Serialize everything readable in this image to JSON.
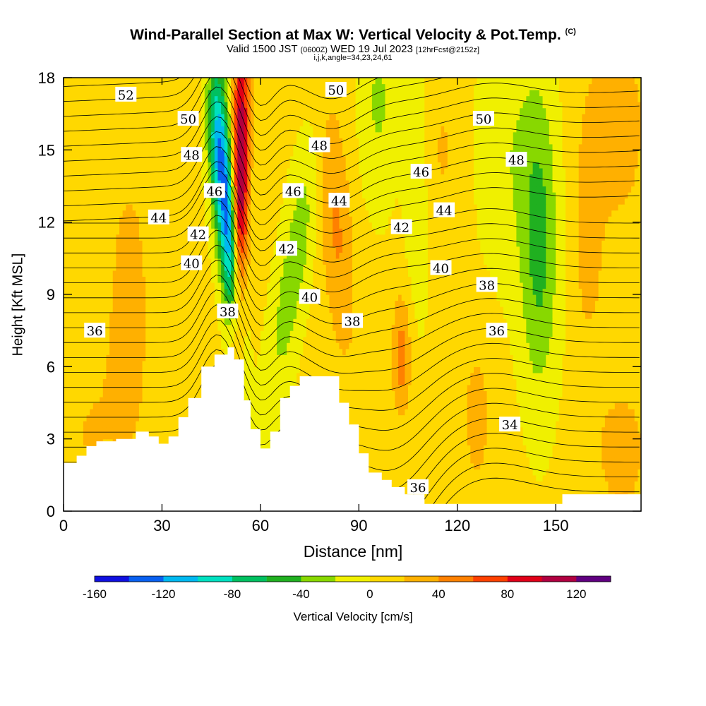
{
  "header": {
    "title": "Wind-Parallel Section at Max W: Vertical Velocity & Pot.Temp.",
    "copyright": "(C)",
    "valid_prefix": "Valid 1500 JST",
    "valid_zulu": "(0600Z)",
    "valid_date": "WED 19 Jul 2023",
    "forecast": "[12hrFcst@2152z]",
    "indices": "i,j,k,angle=34,23,24,61"
  },
  "chart_data": {
    "type": "heatmap",
    "xlabel": "Distance [nm]",
    "ylabel": "Height [Kft MSL]",
    "xlim": [
      0,
      176
    ],
    "ylim": [
      0,
      18
    ],
    "xticks": [
      "0",
      "30",
      "60",
      "90",
      "120",
      "150"
    ],
    "xtick_values": [
      0,
      30,
      60,
      90,
      120,
      150
    ],
    "yticks": [
      "0",
      "3",
      "6",
      "9",
      "12",
      "15",
      "18"
    ],
    "ytick_values": [
      0,
      3,
      6,
      9,
      12,
      15,
      18
    ],
    "colorbar": {
      "label": "Vertical Velocity [cm/s]",
      "tick_labels": [
        "-160",
        "-120",
        "-80",
        "-40",
        "0",
        "40",
        "80",
        "120"
      ],
      "tick_values": [
        -160,
        -120,
        -80,
        -40,
        0,
        40,
        80,
        120
      ],
      "bins": [
        -160,
        -140,
        -120,
        -100,
        -80,
        -60,
        -40,
        -20,
        0,
        20,
        40,
        60,
        80,
        100,
        120,
        140
      ],
      "colors": [
        "#1010e0",
        "#0860f0",
        "#00b8f0",
        "#00e0c0",
        "#00c060",
        "#20b020",
        "#88d800",
        "#f0f000",
        "#ffd800",
        "#ffb000",
        "#ff8000",
        "#ff4000",
        "#e00018",
        "#b00040",
        "#600080"
      ]
    },
    "contour_labels": [
      {
        "text": "52",
        "x": 19,
        "y": 17.3
      },
      {
        "text": "50",
        "x": 38,
        "y": 16.3
      },
      {
        "text": "48",
        "x": 39,
        "y": 14.8
      },
      {
        "text": "46",
        "x": 46,
        "y": 13.3
      },
      {
        "text": "44",
        "x": 29,
        "y": 12.2
      },
      {
        "text": "42",
        "x": 41,
        "y": 11.5
      },
      {
        "text": "40",
        "x": 39,
        "y": 10.3
      },
      {
        "text": "38",
        "x": 50,
        "y": 8.3
      },
      {
        "text": "36",
        "x": 9.5,
        "y": 7.5
      },
      {
        "text": "50",
        "x": 83,
        "y": 17.5
      },
      {
        "text": "48",
        "x": 78,
        "y": 15.2
      },
      {
        "text": "46",
        "x": 70,
        "y": 13.3
      },
      {
        "text": "44",
        "x": 84,
        "y": 12.9
      },
      {
        "text": "42",
        "x": 68,
        "y": 10.9
      },
      {
        "text": "40",
        "x": 75,
        "y": 8.9
      },
      {
        "text": "38",
        "x": 88,
        "y": 7.9
      },
      {
        "text": "46",
        "x": 109,
        "y": 14.1
      },
      {
        "text": "44",
        "x": 116,
        "y": 12.5
      },
      {
        "text": "42",
        "x": 103,
        "y": 11.8
      },
      {
        "text": "40",
        "x": 115,
        "y": 10.1
      },
      {
        "text": "38",
        "x": 129,
        "y": 9.4
      },
      {
        "text": "36",
        "x": 132,
        "y": 7.5
      },
      {
        "text": "50",
        "x": 128,
        "y": 16.3
      },
      {
        "text": "48",
        "x": 138,
        "y": 14.6
      },
      {
        "text": "34",
        "x": 136,
        "y": 3.6
      },
      {
        "text": "36",
        "x": 108,
        "y": 1.0
      }
    ],
    "terrain": {
      "x": [
        0,
        4,
        7,
        10,
        16,
        22,
        26,
        29,
        32,
        35,
        38,
        42,
        46,
        50,
        52,
        55,
        57,
        60,
        63,
        66,
        69,
        72,
        75,
        80,
        84,
        87,
        90,
        93,
        97,
        100,
        104,
        110,
        120,
        140,
        150,
        152,
        176
      ],
      "y": [
        2.0,
        2.3,
        2.7,
        2.9,
        3.0,
        3.3,
        3.1,
        2.8,
        3.1,
        3.9,
        4.7,
        6.0,
        6.5,
        6.8,
        6.3,
        4.6,
        3.4,
        2.6,
        3.3,
        4.7,
        5.2,
        5.6,
        5.6,
        5.6,
        4.5,
        3.6,
        2.4,
        1.6,
        1.3,
        1.0,
        0.7,
        0.3,
        0.3,
        0.3,
        0.3,
        0.7,
        0.7
      ]
    }
  }
}
